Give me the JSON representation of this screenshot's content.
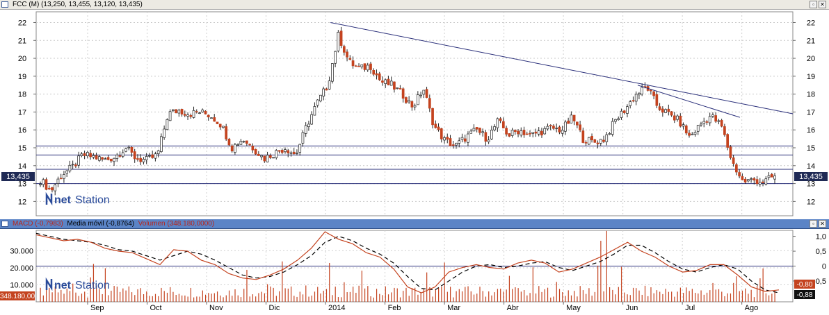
{
  "top_panel": {
    "title": "FCC (M) (13,250, 13,455, 13,120, 13,435)",
    "price_tag": "13,435",
    "watermark_prefix": "net",
    "watermark_suffix": "Station",
    "y_ticks": [
      "22",
      "21",
      "20",
      "19",
      "18",
      "17",
      "16",
      "15",
      "14",
      "13",
      "12"
    ]
  },
  "bottom_panel": {
    "macd_label": "MACD (-0,7983)",
    "mm_label": "Media móvil (-0,8764)",
    "vol_label": "Volumen (348.180,0000)",
    "left_ticks": [
      "30.000",
      "20.000",
      "10.000"
    ],
    "right_ticks": [
      "1,0",
      "0,5",
      "0",
      "-0,5"
    ],
    "left_tag": "348.180,00",
    "right_tag_1": "-0,80",
    "right_tag_2": "-0,88",
    "watermark_prefix": "net",
    "watermark_suffix": "Station"
  },
  "x_axis": [
    "Sep",
    "Oct",
    "Nov",
    "Dic",
    "2014",
    "Feb",
    "Mar",
    "Abr",
    "May",
    "Jun",
    "Jul",
    "Ago"
  ],
  "colors": {
    "up": "#ffffff",
    "down": "#c4431f",
    "outline": "#222222",
    "trend": "#2a2f7a",
    "macd": "#c4431f",
    "signal": "#000000",
    "volume": "#c4431f"
  },
  "chart_data": [
    {
      "type": "candlestick",
      "title": "FCC (M)",
      "last": {
        "open": 13.25,
        "high": 13.455,
        "low": 13.12,
        "close": 13.435
      },
      "ylim": [
        11.2,
        22.6
      ],
      "x_labels": [
        "Sep",
        "Oct",
        "Nov",
        "Dic",
        "2014",
        "Feb",
        "Mar",
        "Abr",
        "May",
        "Jun",
        "Jul",
        "Ago"
      ],
      "close_path": [
        13.2,
        12.6,
        13.5,
        13.9,
        14.6,
        14.5,
        14.3,
        14.5,
        15.0,
        14.4,
        14.3,
        14.6,
        16.9,
        17.1,
        16.9,
        17.0,
        16.8,
        16.3,
        15.0,
        15.5,
        15.0,
        14.4,
        14.7,
        15.0,
        14.6,
        16.2,
        17.5,
        18.5,
        21.3,
        19.8,
        19.4,
        19.6,
        18.7,
        18.5,
        18.0,
        17.3,
        18.3,
        16.2,
        15.4,
        15.1,
        15.6,
        16.0,
        15.5,
        16.5,
        15.7,
        16.0,
        15.7,
        15.9,
        16.1,
        16.0,
        16.7,
        15.5,
        15.3,
        15.5,
        16.5,
        17.2,
        18.0,
        18.4,
        17.3,
        16.9,
        16.5,
        15.6,
        16.3,
        16.8,
        16.2,
        14.2,
        13.1,
        13.2,
        13.1,
        13.435
      ],
      "horizontal_levels": [
        15.1,
        14.6,
        13.8,
        13.0
      ],
      "trendlines": [
        {
          "from": {
            "t": 0.389,
            "v": 22.0
          },
          "to": {
            "t": 1.0,
            "v": 16.9
          }
        },
        {
          "from": {
            "t": 0.795,
            "v": 18.5
          },
          "to": {
            "t": 0.93,
            "v": 16.7
          }
        }
      ]
    },
    {
      "type": "macd_volume",
      "macd": -0.7983,
      "signal": -0.8764,
      "volume_last": 348180,
      "right_ylim": [
        -1.2,
        1.2
      ],
      "left_ylim": [
        0,
        42000
      ],
      "macd_path": [
        1.05,
        0.95,
        0.85,
        0.9,
        0.8,
        0.6,
        0.5,
        0.45,
        0.25,
        0.05,
        0.55,
        0.5,
        0.2,
        0.05,
        -0.25,
        -0.4,
        -0.45,
        -0.3,
        -0.1,
        0.2,
        0.6,
        1.15,
        0.9,
        0.75,
        0.45,
        0.3,
        -0.1,
        -0.7,
        -0.9,
        -0.7,
        -0.2,
        -0.05,
        0.05,
        -0.05,
        -0.1,
        0.1,
        0.2,
        0.1,
        -0.2,
        -0.1,
        0.1,
        0.3,
        0.55,
        0.8,
        0.5,
        0.3,
        0.0,
        -0.2,
        -0.15,
        0.05,
        0.05,
        -0.3,
        -0.7,
        -0.85,
        -0.8
      ],
      "signal_path": [
        1.1,
        1.0,
        0.9,
        0.85,
        0.8,
        0.7,
        0.55,
        0.5,
        0.35,
        0.2,
        0.35,
        0.5,
        0.4,
        0.2,
        -0.05,
        -0.3,
        -0.4,
        -0.35,
        -0.2,
        0.05,
        0.35,
        0.8,
        1.0,
        0.85,
        0.6,
        0.4,
        0.1,
        -0.35,
        -0.75,
        -0.8,
        -0.5,
        -0.2,
        0.0,
        0.05,
        -0.05,
        0.0,
        0.1,
        0.15,
        -0.05,
        -0.15,
        0.0,
        0.15,
        0.4,
        0.7,
        0.7,
        0.45,
        0.15,
        -0.1,
        -0.2,
        -0.05,
        0.05,
        -0.1,
        -0.5,
        -0.8,
        -0.9
      ]
    }
  ]
}
